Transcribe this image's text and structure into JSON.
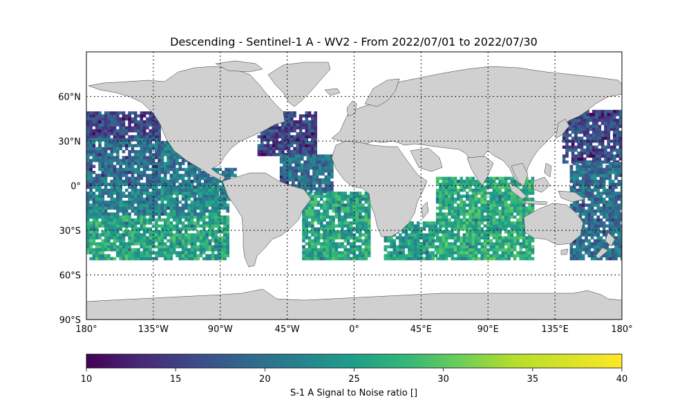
{
  "chart_data": {
    "type": "heatmap",
    "title": "Descending - Sentinel-1 A - WV2 - From 2022/07/01 to 2022/07/30",
    "xlim": [
      -180,
      180
    ],
    "ylim": [
      -90,
      90
    ],
    "grid": true,
    "x_ticks": [
      {
        "value": -180,
        "label": "180°"
      },
      {
        "value": -135,
        "label": "135°W"
      },
      {
        "value": -90,
        "label": "90°W"
      },
      {
        "value": -45,
        "label": "45°W"
      },
      {
        "value": 0,
        "label": "0°"
      },
      {
        "value": 45,
        "label": "45°E"
      },
      {
        "value": 90,
        "label": "90°E"
      },
      {
        "value": 135,
        "label": "135°E"
      },
      {
        "value": 180,
        "label": "180°"
      }
    ],
    "y_ticks": [
      {
        "value": -90,
        "label": "90°S"
      },
      {
        "value": -60,
        "label": "60°S"
      },
      {
        "value": -30,
        "label": "30°S"
      },
      {
        "value": 0,
        "label": "0°"
      },
      {
        "value": 30,
        "label": "30°N"
      },
      {
        "value": 60,
        "label": "60°N"
      }
    ],
    "colorbar": {
      "label": "S-1 A Signal to Noise ratio []",
      "range": [
        10,
        40
      ],
      "ticks": [
        10,
        15,
        20,
        25,
        30,
        35,
        40
      ],
      "colormap": "viridis"
    },
    "data_extent_lat": [
      -50,
      50
    ],
    "cell_size_deg": 2,
    "regions": [
      {
        "lon": [
          -180,
          -130
        ],
        "lat": [
          32,
          50
        ],
        "mean": 16
      },
      {
        "lon": [
          -180,
          -130
        ],
        "lat": [
          0,
          32
        ],
        "mean": 20
      },
      {
        "lon": [
          -130,
          -105
        ],
        "lat": [
          0,
          30
        ],
        "mean": 21
      },
      {
        "lon": [
          -105,
          -80
        ],
        "lat": [
          -10,
          12
        ],
        "mean": 20
      },
      {
        "lon": [
          -180,
          -130
        ],
        "lat": [
          -20,
          0
        ],
        "mean": 22
      },
      {
        "lon": [
          -180,
          -85
        ],
        "lat": [
          -50,
          -20
        ],
        "mean": 26
      },
      {
        "lon": [
          -130,
          -85
        ],
        "lat": [
          -20,
          0
        ],
        "mean": 23
      },
      {
        "lon": [
          -65,
          -25
        ],
        "lat": [
          20,
          50
        ],
        "mean": 16
      },
      {
        "lon": [
          -50,
          -15
        ],
        "lat": [
          -5,
          20
        ],
        "mean": 20
      },
      {
        "lon": [
          -35,
          10
        ],
        "lat": [
          -50,
          -5
        ],
        "mean": 26
      },
      {
        "lon": [
          20,
          55
        ],
        "lat": [
          -50,
          -25
        ],
        "mean": 25
      },
      {
        "lon": [
          55,
          120
        ],
        "lat": [
          -50,
          5
        ],
        "mean": 27
      },
      {
        "lon": [
          140,
          180
        ],
        "lat": [
          15,
          50
        ],
        "mean": 16
      },
      {
        "lon": [
          145,
          180
        ],
        "lat": [
          -50,
          15
        ],
        "mean": 20
      }
    ]
  }
}
